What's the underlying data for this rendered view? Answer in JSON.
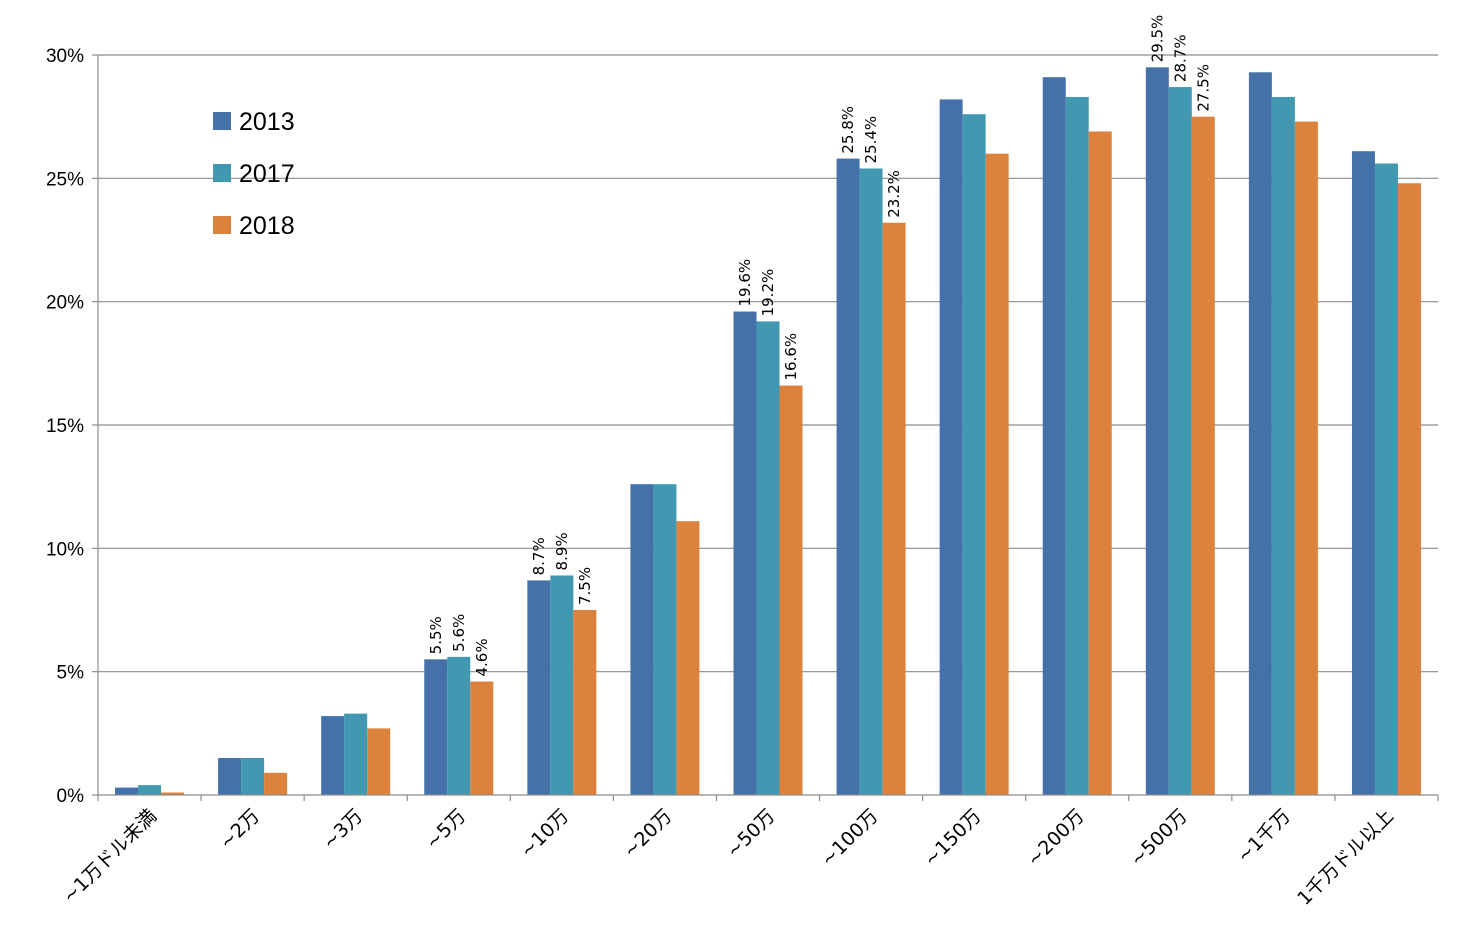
{
  "chart_data": {
    "type": "bar",
    "title": "",
    "xlabel": "",
    "ylabel": "",
    "ylim": [
      0,
      30
    ],
    "y_ticks": [
      0,
      5,
      10,
      15,
      20,
      25,
      30
    ],
    "y_tick_labels": [
      "0%",
      "5%",
      "10%",
      "15%",
      "20%",
      "25%",
      "30%"
    ],
    "grid": true,
    "legend_position": "top-left",
    "categories": [
      "~1万ドル未満",
      "~2万",
      "~3万",
      "~5万",
      "~10万",
      "~20万",
      "~50万",
      "~100万",
      "~150万",
      "~200万",
      "~500万",
      "~1千万",
      "1千万ドル以上"
    ],
    "series": [
      {
        "name": "2013",
        "color": "#4472a8",
        "values": [
          0.3,
          1.5,
          3.2,
          5.5,
          8.7,
          12.6,
          19.6,
          25.8,
          28.2,
          29.1,
          29.5,
          29.3,
          26.1
        ],
        "labels": [
          "",
          "",
          "",
          "5.5%",
          "8.7%",
          "",
          "19.6%",
          "25.8%",
          "",
          "",
          "29.5%",
          "",
          ""
        ]
      },
      {
        "name": "2017",
        "color": "#4298b0",
        "values": [
          0.4,
          1.5,
          3.3,
          5.6,
          8.9,
          12.6,
          19.2,
          25.4,
          27.6,
          28.3,
          28.7,
          28.3,
          25.6
        ],
        "labels": [
          "",
          "",
          "",
          "5.6%",
          "8.9%",
          "",
          "19.2%",
          "25.4%",
          "",
          "",
          "28.7%",
          "",
          ""
        ]
      },
      {
        "name": "2018",
        "color": "#dd823d",
        "values": [
          0.1,
          0.9,
          2.7,
          4.6,
          7.5,
          11.1,
          16.6,
          23.2,
          26.0,
          26.9,
          27.5,
          27.3,
          24.8
        ],
        "labels": [
          "",
          "",
          "",
          "4.6%",
          "7.5%",
          "",
          "16.6%",
          "23.2%",
          "",
          "",
          "27.5%",
          "",
          ""
        ]
      }
    ]
  }
}
